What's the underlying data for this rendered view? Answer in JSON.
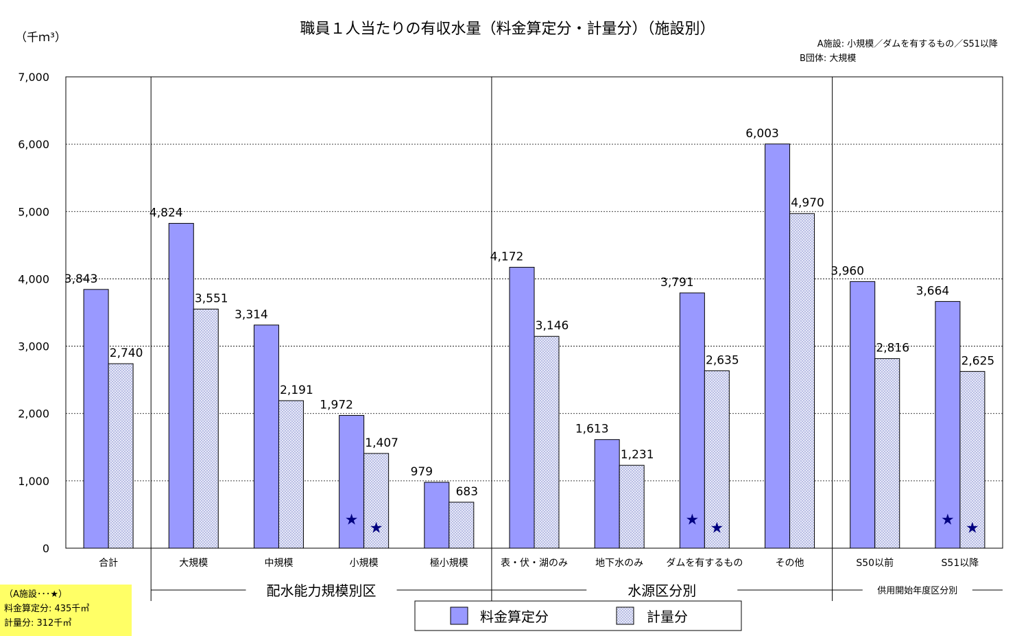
{
  "header": {
    "title": "職員１人当たりの有収水量（料金算定分・計量分）（施設別）",
    "unit": "（千ｍ³）",
    "note_lines": [
      "A施設: 小規模／ダムを有するもの／S51以降",
      "B団体: 大規模"
    ]
  },
  "side_note": {
    "lines": [
      "（A施設･･･★）",
      "料金算定分: 435千㎥",
      "計量分: 312千㎥"
    ]
  },
  "colors": {
    "series1_fill": "#9999ff",
    "series2_fill": "#d4d8f0",
    "star": "#000080",
    "note_bg": "#ffff66"
  },
  "legend": {
    "items": [
      "料金算定分",
      "計量分"
    ]
  },
  "chart_data": {
    "type": "bar",
    "title": "職員１人当たりの有収水量（料金算定分・計量分）（施設別）",
    "ylabel": "（千ｍ³）",
    "xlabel": "",
    "ylim": [
      0,
      7000
    ],
    "yticks": [
      "7,000",
      "6,000",
      "5,000",
      "4,000",
      "3,000",
      "2,000",
      "1,000",
      "0"
    ],
    "grid": true,
    "legend_position": "bottom",
    "categories": [
      "合計",
      "大規模",
      "中規模",
      "小規模",
      "極小規模",
      "表・伏・湖のみ",
      "地下水のみ",
      "ダムを有するもの",
      "その他",
      "S50以前",
      "S51以降"
    ],
    "series": [
      {
        "name": "料金算定分",
        "values": [
          3843,
          4824,
          3314,
          1972,
          979,
          4172,
          1613,
          3791,
          6003,
          3960,
          3664
        ],
        "labels": [
          "3,843",
          "4,824",
          "3,314",
          "1,972",
          "979",
          "4,172",
          "1,613",
          "3,791",
          "6,003",
          "3,960",
          "3,664"
        ]
      },
      {
        "name": "計量分",
        "values": [
          2740,
          3551,
          2191,
          1407,
          683,
          3146,
          1231,
          2635,
          4970,
          2816,
          2625
        ],
        "labels": [
          "2,740",
          "3,551",
          "2,191",
          "1,407",
          "683",
          "3,146",
          "1,231",
          "2,635",
          "4,970",
          "2,816",
          "2,625"
        ]
      }
    ],
    "groups": [
      {
        "label": "配水能力規模別区",
        "from": 1,
        "to": 4
      },
      {
        "label": "水源区分別",
        "from": 5,
        "to": 8
      },
      {
        "label": "供用開始年度区分別",
        "from": 9,
        "to": 10
      }
    ],
    "star_markers": {
      "symbol": "★",
      "categories": [
        "小規模",
        "ダムを有するもの",
        "S51以降"
      ],
      "values": {
        "料金算定分": 435,
        "計量分": 312
      }
    }
  }
}
